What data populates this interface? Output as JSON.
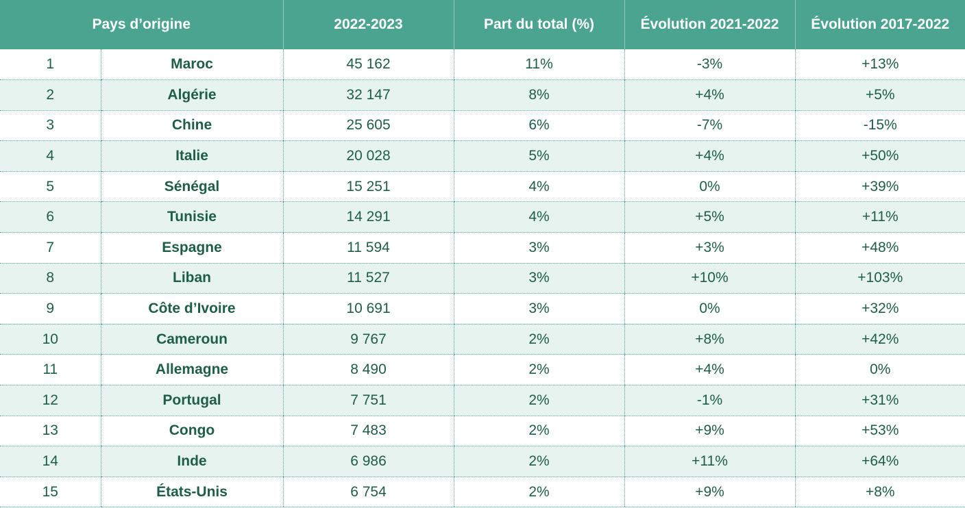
{
  "headers": {
    "country": "Pays d’origine",
    "value": "2022-2023",
    "share": "Part du total (%)",
    "evo_short": "Évolution 2021-2022",
    "evo_long": "Évolution 2017-2022"
  },
  "rows": [
    {
      "rank": "1",
      "country": "Maroc",
      "value": "45 162",
      "share": "11%",
      "evo_short": "-3%",
      "evo_long": "+13%"
    },
    {
      "rank": "2",
      "country": "Algérie",
      "value": "32 147",
      "share": "8%",
      "evo_short": "+4%",
      "evo_long": "+5%"
    },
    {
      "rank": "3",
      "country": "Chine",
      "value": "25 605",
      "share": "6%",
      "evo_short": "-7%",
      "evo_long": "-15%"
    },
    {
      "rank": "4",
      "country": "Italie",
      "value": "20 028",
      "share": "5%",
      "evo_short": "+4%",
      "evo_long": "+50%"
    },
    {
      "rank": "5",
      "country": "Sénégal",
      "value": "15 251",
      "share": "4%",
      "evo_short": "0%",
      "evo_long": "+39%"
    },
    {
      "rank": "6",
      "country": "Tunisie",
      "value": "14 291",
      "share": "4%",
      "evo_short": "+5%",
      "evo_long": "+11%"
    },
    {
      "rank": "7",
      "country": "Espagne",
      "value": "11 594",
      "share": "3%",
      "evo_short": "+3%",
      "evo_long": "+48%"
    },
    {
      "rank": "8",
      "country": "Liban",
      "value": "11 527",
      "share": "3%",
      "evo_short": "+10%",
      "evo_long": "+103%"
    },
    {
      "rank": "9",
      "country": "Côte d’Ivoire",
      "value": "10 691",
      "share": "3%",
      "evo_short": "0%",
      "evo_long": "+32%"
    },
    {
      "rank": "10",
      "country": "Cameroun",
      "value": "9 767",
      "share": "2%",
      "evo_short": "+8%",
      "evo_long": "+42%"
    },
    {
      "rank": "11",
      "country": "Allemagne",
      "value": "8 490",
      "share": "2%",
      "evo_short": "+4%",
      "evo_long": "0%"
    },
    {
      "rank": "12",
      "country": "Portugal",
      "value": "7 751",
      "share": "2%",
      "evo_short": "-1%",
      "evo_long": "+31%"
    },
    {
      "rank": "13",
      "country": "Congo",
      "value": "7 483",
      "share": "2%",
      "evo_short": "+9%",
      "evo_long": "+53%"
    },
    {
      "rank": "14",
      "country": "Inde",
      "value": "6 986",
      "share": "2%",
      "evo_short": "+11%",
      "evo_long": "+64%"
    },
    {
      "rank": "15",
      "country": "États-Unis",
      "value": "6 754",
      "share": "2%",
      "evo_short": "+9%",
      "evo_long": "+8%"
    }
  ],
  "colors": {
    "header_bg": "#4ba48f",
    "text": "#1e5e48",
    "stripe": "#e6f3ef"
  }
}
